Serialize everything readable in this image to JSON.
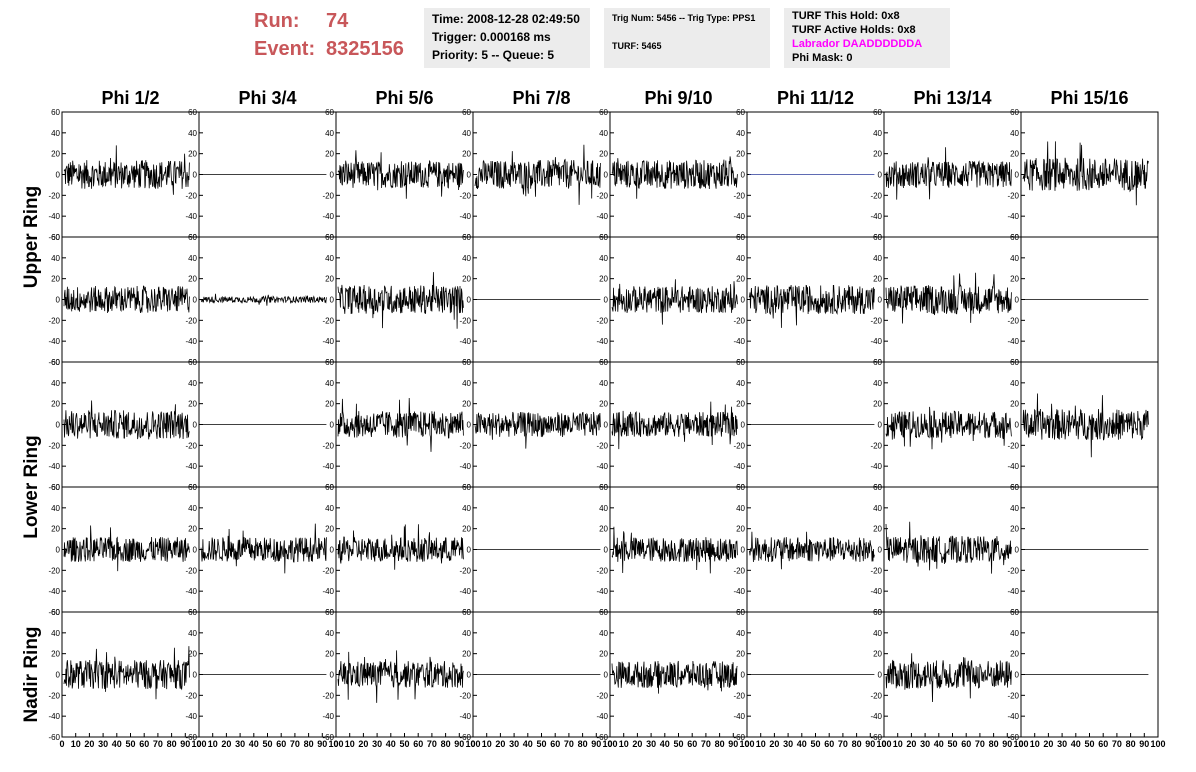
{
  "header": {
    "run_label": "Run:",
    "run_value": "74",
    "event_label": "Event:",
    "event_value": "8325156",
    "time": "Time: 2008-12-28 02:49:50",
    "trigger": "Trigger: 0.000168 ms",
    "priority": "Priority: 5 -- Queue: 5",
    "trig_info": "Trig Num: 5456 -- Trig Type: PPS1",
    "turf": "TURF: 5465",
    "turf_hold": "TURF This Hold: 0x8",
    "turf_active": "TURF Active Holds: 0x8",
    "labrador": "Labrador DAADDDDDDA",
    "phi_mask": "Phi Mask: 0",
    "labrador_color": "#ff00ff",
    "run_color": "#c8575a"
  },
  "chart_data": {
    "type": "line",
    "columns": [
      "Phi 1/2",
      "Phi 3/4",
      "Phi 5/6",
      "Phi 7/8",
      "Phi 9/10",
      "Phi 11/12",
      "Phi 13/14",
      "Phi 15/16"
    ],
    "rows": [
      {
        "label": "Upper Ring",
        "span": 2
      },
      {
        "label": "Lower Ring",
        "span": 2
      },
      {
        "label": "Nadir Ring",
        "span": 1
      }
    ],
    "xlim": [
      0,
      100
    ],
    "ylim": [
      -60,
      60
    ],
    "x_ticks": [
      "0",
      "10",
      "20",
      "30",
      "40",
      "50",
      "60",
      "70",
      "80",
      "90",
      "100"
    ],
    "y_ticks": [
      "-60",
      "-40",
      "-20",
      "0",
      "20",
      "40",
      "60"
    ],
    "samples": 260,
    "panels": [
      [
        {
          "amp": 14
        },
        {
          "amp": 0
        },
        {
          "amp": 13
        },
        {
          "amp": 14
        },
        {
          "amp": 14
        },
        {
          "amp": 0,
          "color": "#2a3a9a"
        },
        {
          "amp": 13
        },
        {
          "amp": 16
        }
      ],
      [
        {
          "amp": 13
        },
        {
          "amp": 3
        },
        {
          "amp": 14
        },
        {
          "amp": 0
        },
        {
          "amp": 13
        },
        {
          "amp": 14
        },
        {
          "amp": 14
        },
        {
          "amp": 0
        }
      ],
      [
        {
          "amp": 14
        },
        {
          "amp": 0
        },
        {
          "amp": 13
        },
        {
          "amp": 12
        },
        {
          "amp": 12
        },
        {
          "amp": 0
        },
        {
          "amp": 13
        },
        {
          "amp": 15
        }
      ],
      [
        {
          "amp": 12
        },
        {
          "amp": 12
        },
        {
          "amp": 12
        },
        {
          "amp": 0
        },
        {
          "amp": 12
        },
        {
          "amp": 12
        },
        {
          "amp": 13
        },
        {
          "amp": 0
        }
      ],
      [
        {
          "amp": 14
        },
        {
          "amp": 0
        },
        {
          "amp": 13
        },
        {
          "amp": 0
        },
        {
          "amp": 13
        },
        {
          "amp": 0
        },
        {
          "amp": 14
        },
        {
          "amp": 0
        }
      ]
    ]
  }
}
